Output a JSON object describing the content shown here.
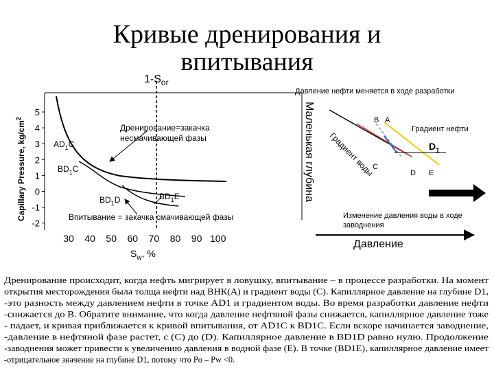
{
  "title_lines": [
    "Кривые дренирования и",
    "впитывания"
  ],
  "left_plot": {
    "sor_label": {
      "main": "1-S",
      "sub": "or"
    },
    "y_axis_label": {
      "main": "Capillary Pressure, kg/cm",
      "sup": "2"
    },
    "y_ticks": [
      5,
      4,
      3,
      2,
      1,
      0,
      -1,
      -2
    ],
    "x_ticks": [
      30,
      40,
      50,
      60,
      70,
      80,
      90,
      100
    ],
    "x_axis_label": {
      "main": "S",
      "sub": "w",
      "post": ", %"
    },
    "drainage_label": [
      "Дренирование=закачка",
      "несмачивающей фазы"
    ],
    "imbibition_label": "Впитывание = закачка смачивающей фазы",
    "curve_labels": [
      {
        "pre": "AD",
        "sub": "1",
        "post": "C"
      },
      {
        "pre": "BD",
        "sub": "1",
        "post": "C"
      },
      {
        "pre": "BD",
        "sub": "1",
        "post": "D"
      },
      {
        "pre": "BD",
        "sub": "1",
        "post": "E"
      }
    ]
  },
  "right_plot": {
    "header": "Давление нефти меняется в ходе разработки",
    "depth_label": "Маленькая глубина",
    "point_b": "B",
    "point_a": "A",
    "oil_gradient": "Градиент нефти",
    "depth": {
      "main": "D",
      "sub": "1"
    },
    "water_gradient": "Градиент воды",
    "point_c": "C",
    "point_d": "D",
    "point_e": "E",
    "waterflood_note": [
      "Изменение давления воды в ходе",
      "заводнения"
    ],
    "pressure_label": "Давление"
  },
  "description": [
    "Дренирование происходит, когда нефть мигрирует в ловушку, впитывание – в процессе разработки. На момент",
    "открытия месторождения была толща нефти над ВНК(A) и градиент воды (C). Капиллярное давление на глубине D1,",
    "-это разность между давлением нефти в точке AD1 и градиентом воды. Во время разработки давление нефти",
    "-снижается до B. Обратите внимание, что когда давление нефтяной фазы снижается, капиллярное давление тоже",
    "- падает, и кривая приближается к кривой впитывания, от AD1C к BD1C. Если вскоре начинается заводнение,",
    "-давление в нефтяной фазе растет, с (C) до (D). Капиллярное давление в BD1D равно нулю. Продолжение",
    "-заводнения может привести к увеличению давления в водной фазе (E). В точке (BD1E), капиллярное давление имеет",
    "-отрицательное значение на глубине D1, потому что Po – Pw <0."
  ]
}
